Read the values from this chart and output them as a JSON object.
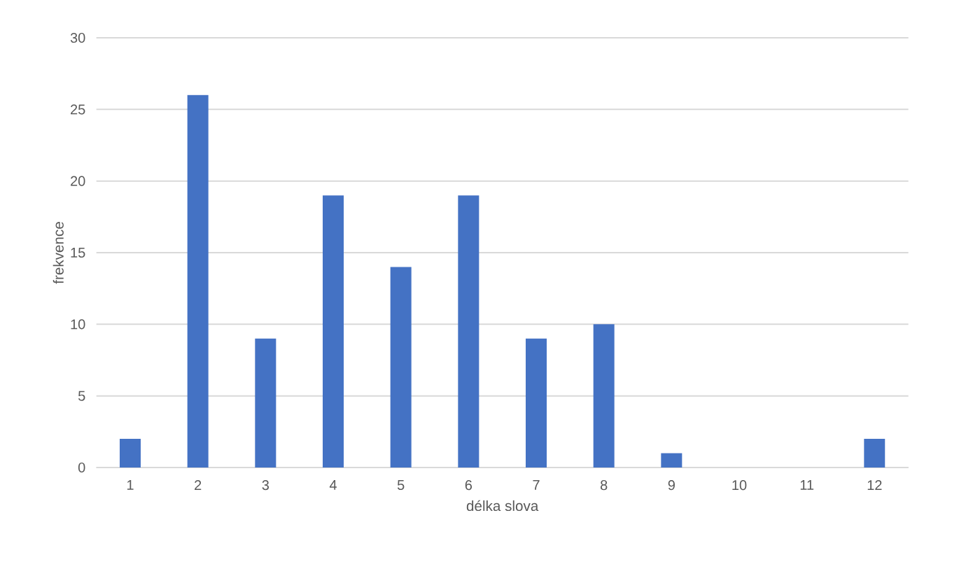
{
  "chart_data": {
    "type": "bar",
    "xlabel": "délka slova",
    "ylabel": "frekvence",
    "categories": [
      "1",
      "2",
      "3",
      "4",
      "5",
      "6",
      "7",
      "8",
      "9",
      "10",
      "11",
      "12"
    ],
    "values": [
      2,
      26,
      9,
      19,
      14,
      19,
      9,
      10,
      1,
      0,
      0,
      2
    ],
    "color": "#4472c4",
    "ylim": [
      0,
      30
    ],
    "yticks": [
      0,
      5,
      10,
      15,
      20,
      25,
      30
    ],
    "grid": "y"
  }
}
